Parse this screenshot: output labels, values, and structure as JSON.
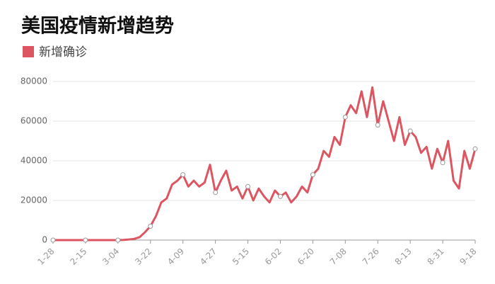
{
  "chart_data": {
    "type": "line",
    "title": "美国疫情新增趋势",
    "categories": [
      "1-28",
      null,
      null,
      null,
      null,
      null,
      "2-15",
      null,
      null,
      null,
      null,
      null,
      "3-04",
      null,
      null,
      null,
      null,
      null,
      "3-22",
      null,
      null,
      null,
      null,
      null,
      "4-09",
      null,
      null,
      null,
      null,
      null,
      "4-27",
      null,
      null,
      null,
      null,
      null,
      "5-15",
      null,
      null,
      null,
      null,
      null,
      "6-02",
      null,
      null,
      null,
      null,
      null,
      "6-20",
      null,
      null,
      null,
      null,
      null,
      "7-08",
      null,
      null,
      null,
      null,
      null,
      "7-26",
      null,
      null,
      null,
      null,
      null,
      "8-13",
      null,
      null,
      null,
      null,
      null,
      "8-31",
      null,
      null,
      null,
      null,
      null,
      "9-18"
    ],
    "series": [
      {
        "name": "新增确诊",
        "color": "#dc5561",
        "values": [
          0,
          0,
          0,
          0,
          0,
          0,
          0,
          0,
          0,
          0,
          0,
          0,
          0,
          100,
          300,
          600,
          1500,
          4000,
          7000,
          12000,
          19000,
          21000,
          28000,
          30000,
          33000,
          27000,
          30000,
          27000,
          29000,
          38000,
          24000,
          30000,
          35000,
          25000,
          27000,
          21000,
          27000,
          20000,
          26000,
          22000,
          19000,
          25000,
          22000,
          24000,
          19000,
          22000,
          27000,
          24000,
          33000,
          36000,
          45000,
          42000,
          52000,
          48000,
          62000,
          68000,
          64000,
          75000,
          62000,
          77000,
          58000,
          70000,
          60000,
          50000,
          62000,
          48000,
          55000,
          52000,
          44000,
          47000,
          36000,
          46000,
          39000,
          50000,
          30000,
          26000,
          45000,
          36000,
          46000
        ]
      }
    ],
    "ylim": [
      0,
      80000
    ],
    "yticks": [
      0,
      20000,
      40000,
      60000,
      80000
    ],
    "grid": true
  }
}
